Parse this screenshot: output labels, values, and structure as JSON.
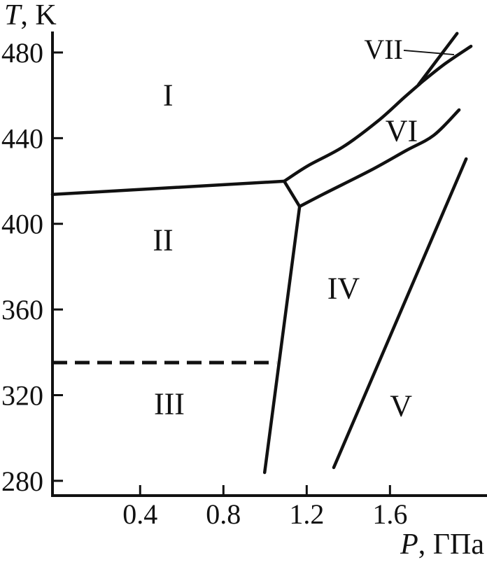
{
  "figure": {
    "background": "#ffffff",
    "ink_color": "#111111",
    "description": "Pressure-temperature phase diagram with regions I-VII"
  },
  "chart_data": {
    "type": "line",
    "subtype": "phase-diagram",
    "title": "",
    "xlabel": "P, ГПа",
    "ylabel": "T, K",
    "xlabel_parts": {
      "italic": "P",
      "rest": ", ГПа"
    },
    "ylabel_parts": {
      "italic": "T",
      "rest": ", K"
    },
    "xlim": [
      -0.021,
      2.066
    ],
    "ylim": [
      273.1,
      489.8
    ],
    "grid": false,
    "legend": null,
    "x_ticks": {
      "values": [
        0.4,
        0.8,
        1.2,
        1.6
      ],
      "labels": [
        "0.4",
        "0.8",
        "1.2",
        "1.6"
      ]
    },
    "y_ticks": {
      "values": [
        280,
        320,
        360,
        400,
        440,
        480
      ],
      "labels": [
        "280",
        "320",
        "360",
        "400",
        "440",
        "480"
      ]
    },
    "regions": [
      {
        "label": "I",
        "P": 0.534,
        "T": 460.1,
        "font": 44
      },
      {
        "label": "II",
        "P": 0.51,
        "T": 392.4,
        "font": 44
      },
      {
        "label": "III",
        "P": 0.54,
        "T": 315.9,
        "font": 44
      },
      {
        "label": "IV",
        "P": 1.377,
        "T": 369.9,
        "font": 44
      },
      {
        "label": "V",
        "P": 1.653,
        "T": 314.9,
        "font": 44
      },
      {
        "label": "VI",
        "P": 1.656,
        "T": 443.4,
        "font": 44
      },
      {
        "label": "VII",
        "P": 1.569,
        "T": 481.3,
        "font": 40
      }
    ],
    "boundaries": [
      {
        "name": "I-II",
        "style": "solid",
        "smooth": false,
        "width": 4.5,
        "points": [
          [
            -0.021,
            413.7
          ],
          [
            1.092,
            419.9
          ]
        ]
      },
      {
        "name": "I-VI",
        "style": "solid",
        "smooth": true,
        "width": 4.5,
        "points": [
          [
            1.092,
            419.9
          ],
          [
            1.206,
            427.1
          ],
          [
            1.374,
            435.9
          ],
          [
            1.542,
            448.0
          ],
          [
            1.666,
            458.8
          ],
          [
            1.744,
            465.4
          ]
        ]
      },
      {
        "name": "VII-left",
        "style": "solid",
        "smooth": false,
        "width": 4.5,
        "points": [
          [
            1.737,
            465.0
          ],
          [
            1.922,
            488.9
          ]
        ]
      },
      {
        "name": "VII-right",
        "style": "solid",
        "smooth": true,
        "width": 4.5,
        "points": [
          [
            1.747,
            465.7
          ],
          [
            1.861,
            474.5
          ],
          [
            1.989,
            482.9
          ]
        ]
      },
      {
        "name": "triple-point-link",
        "style": "solid",
        "smooth": false,
        "width": 4.5,
        "points": [
          [
            1.092,
            419.9
          ],
          [
            1.166,
            408.1
          ]
        ]
      },
      {
        "name": "VI-IV",
        "style": "solid",
        "smooth": true,
        "width": 4.5,
        "points": [
          [
            1.166,
            408.1
          ],
          [
            1.283,
            414.0
          ],
          [
            1.509,
            425.1
          ],
          [
            1.677,
            434.2
          ],
          [
            1.811,
            441.4
          ],
          [
            1.932,
            453.2
          ]
        ]
      },
      {
        "name": "II-IV",
        "style": "solid",
        "smooth": false,
        "width": 4.5,
        "points": [
          [
            1.166,
            408.1
          ],
          [
            0.998,
            283.9
          ]
        ]
      },
      {
        "name": "II-III",
        "style": "dashed",
        "smooth": false,
        "width": 5,
        "points": [
          [
            -0.021,
            335.2
          ],
          [
            1.055,
            335.2
          ]
        ]
      },
      {
        "name": "IV-V",
        "style": "solid",
        "smooth": false,
        "width": 4.5,
        "points": [
          [
            1.33,
            286.2
          ],
          [
            1.966,
            430.3
          ]
        ]
      }
    ],
    "annotations": [
      {
        "type": "leader-line",
        "for": "VII",
        "from": [
          1.666,
          481.0
        ],
        "to": [
          1.908,
          479.0
        ],
        "width": 1.8
      }
    ]
  }
}
